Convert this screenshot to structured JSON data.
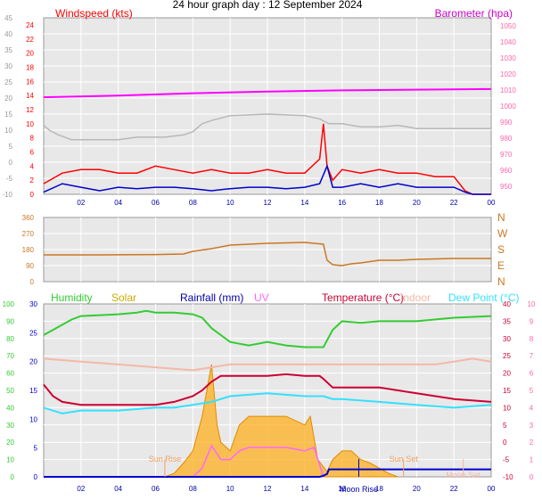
{
  "page_title": "24 hour graph day : 12 September 2024",
  "colors": {
    "plot_bg": "#e8e8e8",
    "grid": "#ffffff",
    "windspeed": "#ff0000",
    "gust_avg": "#0000cc",
    "wind_grey": "#b8b8b8",
    "barometer": "#ff00ff",
    "direction": "#cc7722",
    "humidity": "#33cc33",
    "solar": "#ffb020",
    "rainfall": "#0000cc",
    "uv": "#ff66ff",
    "temperature": "#cc0033",
    "indoor": "#f4b8a8",
    "dew_point": "#33e0ff",
    "axis_left_wind": "#ff0000",
    "axis_left_grey": "#999999",
    "axis_dir": "#cc7722",
    "axis_green": "#33cc33",
    "axis_blue": "#0000cc",
    "axis_pink": "#ff66aa",
    "axis_red": "#cc0033"
  },
  "x_ticks": [
    "02",
    "04",
    "06",
    "08",
    "10",
    "12",
    "14",
    "16",
    "18",
    "20",
    "22",
    "00"
  ],
  "chart_data": [
    {
      "type": "line",
      "panel": "wind",
      "labels": {
        "left": "Windspeed (kts)",
        "right": "Barometer (hpa)"
      },
      "axes": {
        "left_red": {
          "ticks": [
            "0",
            "2",
            "4",
            "6",
            "8",
            "10",
            "12",
            "14",
            "16",
            "18",
            "20",
            "22",
            "24"
          ],
          "ylim": [
            0,
            25
          ]
        },
        "left_grey": {
          "ticks": [
            "-10",
            "-5",
            "0",
            "5",
            "10",
            "15",
            "20",
            "25",
            "30",
            "35",
            "40",
            "45"
          ],
          "ylim": [
            -10,
            45
          ]
        },
        "right": {
          "ticks": [
            "950",
            "960",
            "970",
            "980",
            "990",
            "1000",
            "1010",
            "1020",
            "1030",
            "1040",
            "1050"
          ],
          "ylim": [
            945,
            1055
          ]
        }
      },
      "series": [
        {
          "key": "barometer",
          "hours": [
            0,
            4,
            8,
            12,
            16,
            20,
            24
          ],
          "values": [
            1005.5,
            1006.5,
            1008,
            1009,
            1009.8,
            1010.2,
            1010.6
          ]
        },
        {
          "key": "grey_temp",
          "hours": [
            0,
            0.3,
            0.8,
            1.5,
            4,
            5,
            6.5,
            7.5,
            8,
            8.5,
            9,
            10,
            12,
            14,
            14.8,
            15.3,
            16,
            17,
            18,
            19,
            19.5,
            20,
            22,
            24
          ],
          "values": [
            11.5,
            10,
            8.5,
            7,
            7,
            7.8,
            7.8,
            8.5,
            9.5,
            12,
            13,
            14.5,
            15,
            14.5,
            13.5,
            12,
            12,
            11,
            11,
            11.5,
            11,
            10.5,
            10.5,
            10.5
          ]
        },
        {
          "key": "windspeed",
          "hours": [
            0,
            1,
            2,
            3,
            4,
            5,
            6,
            7,
            8,
            9,
            10,
            11,
            12,
            13,
            14,
            14.8,
            15,
            15.2,
            15.5,
            16,
            17,
            18,
            19,
            20,
            21,
            22,
            22.6,
            23,
            24
          ],
          "values": [
            1.5,
            3,
            3.5,
            3.5,
            3,
            3,
            4,
            3.5,
            3,
            3.5,
            3,
            3,
            3.5,
            3,
            3,
            5,
            10,
            4,
            2,
            3.5,
            3,
            3.5,
            3,
            3,
            2.5,
            2.5,
            0.5,
            0,
            0
          ]
        },
        {
          "key": "gust_avg",
          "hours": [
            0,
            1,
            2,
            3,
            4,
            5,
            6,
            7,
            8,
            9,
            10,
            11,
            12,
            13,
            14,
            14.8,
            15.2,
            15.5,
            16,
            17,
            18,
            19,
            20,
            21,
            22,
            22.6,
            23,
            24
          ],
          "values": [
            0.3,
            1.5,
            1,
            0.5,
            1,
            0.8,
            1,
            1,
            0.8,
            0.5,
            0.8,
            1,
            1,
            0.8,
            1,
            1.5,
            4,
            1,
            1,
            1.5,
            1,
            1.5,
            1,
            1,
            1,
            0.3,
            0,
            0
          ]
        }
      ]
    },
    {
      "type": "line",
      "panel": "direction",
      "axes": {
        "left": {
          "ticks": [
            "0",
            "90",
            "180",
            "270",
            "360"
          ],
          "ylim": [
            0,
            360
          ]
        },
        "right": {
          "ticks": [
            "N",
            "E",
            "S",
            "W",
            "N"
          ]
        }
      },
      "series": [
        {
          "key": "wind_direction",
          "hours": [
            0,
            3,
            6,
            7.5,
            8,
            9,
            10,
            12,
            14,
            14.5,
            15,
            15.2,
            15.5,
            16,
            16.5,
            17,
            18,
            19,
            20,
            22,
            24
          ],
          "values": [
            150,
            150,
            152,
            155,
            170,
            185,
            205,
            215,
            220,
            215,
            210,
            120,
            95,
            90,
            100,
            105,
            120,
            120,
            125,
            130,
            130
          ]
        }
      ]
    },
    {
      "type": "line",
      "panel": "climate",
      "legend": [
        "Humidity",
        "Solar",
        "Rainfall (mm)",
        "UV",
        "Temperature (°C)",
        "Indoor",
        "Dew Point (°C)"
      ],
      "axes": {
        "left_green": {
          "ticks": [
            "0",
            "10",
            "20",
            "30",
            "40",
            "50",
            "60",
            "70",
            "80",
            "90",
            "100"
          ],
          "ylim": [
            0,
            100
          ]
        },
        "left_blue": {
          "ticks": [
            "0",
            "5",
            "10",
            "15",
            "20",
            "25",
            "30"
          ],
          "ylim": [
            0,
            30
          ]
        },
        "right_red": {
          "ticks": [
            "-10",
            "-5",
            "0",
            "5",
            "10",
            "15",
            "20",
            "25",
            "30",
            "35",
            "40"
          ],
          "ylim": [
            -10,
            40
          ]
        },
        "right_pink": {
          "ticks": [
            "0",
            "1",
            "2",
            "3",
            "4",
            "5",
            "6",
            "7",
            "8",
            "9",
            "10"
          ],
          "ylim": [
            0,
            10
          ]
        }
      },
      "annotations": [
        "Sun Rise",
        "Sun Set",
        "Moon Rise",
        "Moon Set"
      ],
      "series": [
        {
          "key": "humidity",
          "hours": [
            0,
            0.5,
            1.5,
            2,
            4,
            5,
            5.5,
            6,
            7,
            8,
            8.5,
            9,
            10,
            11,
            12,
            13,
            14,
            14.8,
            15,
            15.5,
            16,
            17,
            18,
            20,
            22,
            24
          ],
          "values": [
            82,
            85,
            91,
            93,
            94,
            95,
            96,
            95,
            95,
            94,
            92,
            86,
            78,
            76,
            78,
            76,
            75,
            75,
            75,
            85,
            90,
            89,
            90,
            90,
            92,
            93
          ]
        },
        {
          "key": "indoor",
          "hours": [
            0,
            2,
            4,
            6,
            8,
            9,
            10,
            12,
            14,
            16,
            18,
            20,
            21,
            22,
            23,
            24
          ],
          "values": [
            20.5,
            20,
            19.5,
            19,
            18.5,
            19,
            19.5,
            19.5,
            19.5,
            19.5,
            19.5,
            19.5,
            19.5,
            20,
            20.5,
            20
          ]
        },
        {
          "key": "temperature",
          "hours": [
            0,
            0.5,
            1,
            2,
            4,
            6,
            7,
            8,
            8.5,
            9,
            9.5,
            10,
            12,
            13,
            14,
            14.8,
            15,
            15.5,
            16,
            18,
            20,
            22,
            24
          ],
          "values": [
            16,
            14,
            13,
            12.5,
            12.5,
            12.5,
            13,
            14,
            15,
            16.5,
            17.5,
            17.5,
            17.5,
            17.8,
            17.5,
            17.5,
            17,
            15.5,
            15.5,
            15.5,
            14.5,
            13.5,
            13
          ]
        },
        {
          "key": "dew_point",
          "hours": [
            0,
            1,
            2,
            4,
            6,
            7,
            8,
            9,
            10,
            12,
            14,
            15,
            15.5,
            16,
            18,
            20,
            22,
            24
          ],
          "values": [
            12,
            11,
            11.5,
            11.5,
            12,
            12,
            12.5,
            13,
            14,
            14.5,
            14,
            14,
            13.5,
            13.5,
            13,
            12.5,
            12,
            12.5
          ]
        },
        {
          "key": "solar",
          "hours": [
            6.5,
            7,
            7.5,
            8,
            8.5,
            9,
            9.3,
            9.5,
            10,
            10.5,
            11,
            12,
            13,
            14,
            14.3,
            14.7,
            15.2,
            15.5,
            16,
            16.5,
            17,
            17.5,
            18.5,
            19
          ],
          "values": [
            0,
            0.2,
            0.8,
            1.5,
            3.5,
            6.5,
            3,
            2,
            1.5,
            3,
            3.5,
            3.5,
            3.5,
            3,
            3.5,
            1,
            0.3,
            1,
            1.5,
            1.5,
            1,
            0.8,
            0.2,
            0
          ]
        },
        {
          "key": "uv",
          "hours": [
            8,
            8.5,
            9,
            9.5,
            10,
            10.5,
            11,
            12,
            13,
            14,
            14.5,
            15
          ],
          "values": [
            0,
            0.5,
            1.8,
            1,
            1,
            1.5,
            1.7,
            1.7,
            1.7,
            1.5,
            1.7,
            0
          ]
        },
        {
          "key": "rainfall",
          "hours": [
            0,
            14.8,
            15,
            15.2,
            15.3,
            24
          ],
          "values": [
            0,
            0,
            0.2,
            0.5,
            1.3,
            1.3
          ]
        }
      ]
    }
  ]
}
